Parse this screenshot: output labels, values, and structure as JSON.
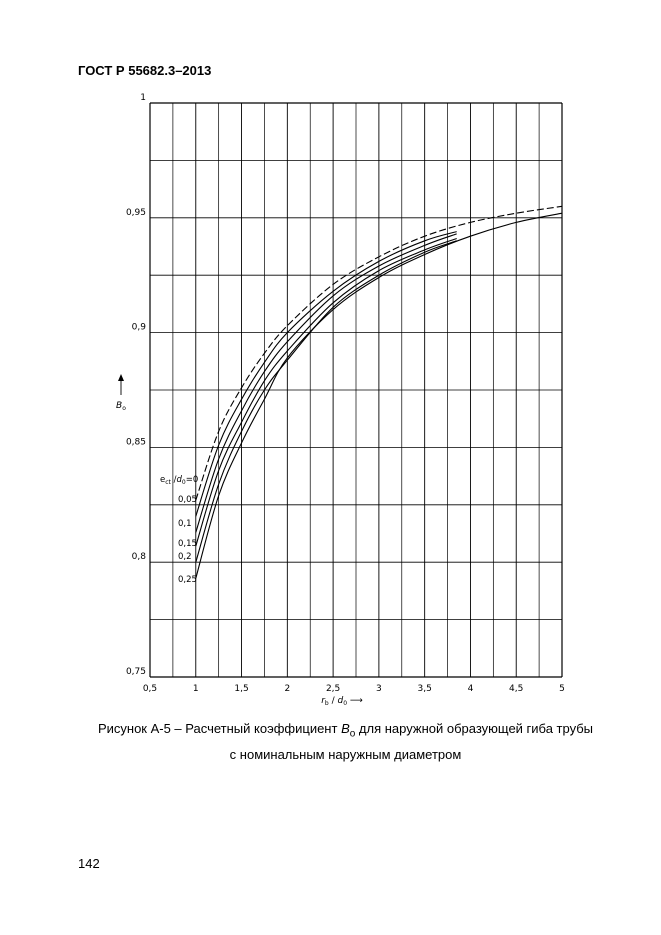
{
  "document": {
    "header": "ГОСТ Р 55682.3–2013",
    "page_number": "142",
    "caption_prefix": "Рисунок А-5 – Расчетный коэффициент ",
    "caption_symbol": "B",
    "caption_symbol_sub": "o",
    "caption_rest": " для наружной образующей гиба трубы",
    "caption_line2": "с номинальным наружным диаметром"
  },
  "chart_data": {
    "type": "line",
    "title": "",
    "xlabel": "r_b / d_0 ⟶",
    "ylabel": "B_o",
    "xlim": [
      0.5,
      5
    ],
    "ylim": [
      0.75,
      1
    ],
    "x_ticks": [
      "0,5",
      "1",
      "1,5",
      "2",
      "2,5",
      "3",
      "3,5",
      "4",
      "4,5",
      "5"
    ],
    "y_ticks": [
      "0,75",
      "0,8",
      "0,85",
      "0,9",
      "0,95",
      "1"
    ],
    "grid": true,
    "legend_title": "e_ct / d_0 = 0",
    "series": [
      {
        "name": "0",
        "dashed": true,
        "x": [
          1,
          1.25,
          1.5,
          1.75,
          2,
          2.5,
          3,
          3.5,
          4,
          4.5,
          5
        ],
        "y": [
          0.827,
          0.857,
          0.876,
          0.891,
          0.903,
          0.921,
          0.933,
          0.942,
          0.948,
          0.952,
          0.955
        ]
      },
      {
        "name": "0,05",
        "x": [
          1,
          1.25,
          1.5,
          1.75,
          2,
          2.5,
          3,
          3.5,
          3.85
        ],
        "y": [
          0.82,
          0.851,
          0.871,
          0.887,
          0.9,
          0.918,
          0.931,
          0.94,
          0.944
        ]
      },
      {
        "name": "0,1",
        "x": [
          1,
          1.25,
          1.5,
          1.75,
          2,
          2.5,
          3,
          3.5,
          3.85
        ],
        "y": [
          0.813,
          0.845,
          0.866,
          0.883,
          0.896,
          0.916,
          0.929,
          0.938,
          0.943
        ]
      },
      {
        "name": "0,15",
        "x": [
          1,
          1.25,
          1.5,
          1.75,
          2,
          2.5,
          3,
          3.5,
          3.85
        ],
        "y": [
          0.807,
          0.84,
          0.861,
          0.879,
          0.892,
          0.913,
          0.927,
          0.936,
          0.941
        ]
      },
      {
        "name": "0,2",
        "x": [
          1,
          1.25,
          1.5,
          1.75,
          2,
          2.5,
          3,
          3.5,
          3.85
        ],
        "y": [
          0.8,
          0.834,
          0.857,
          0.875,
          0.888,
          0.911,
          0.925,
          0.935,
          0.94
        ]
      },
      {
        "name": "0,25",
        "x": [
          1,
          1.25,
          1.5,
          1.75,
          2,
          2.5,
          3,
          3.5,
          4,
          4.5,
          5
        ],
        "y": [
          0.793,
          0.829,
          0.852,
          0.871,
          0.889,
          0.91,
          0.924,
          0.934,
          0.942,
          0.948,
          0.952
        ]
      }
    ]
  }
}
